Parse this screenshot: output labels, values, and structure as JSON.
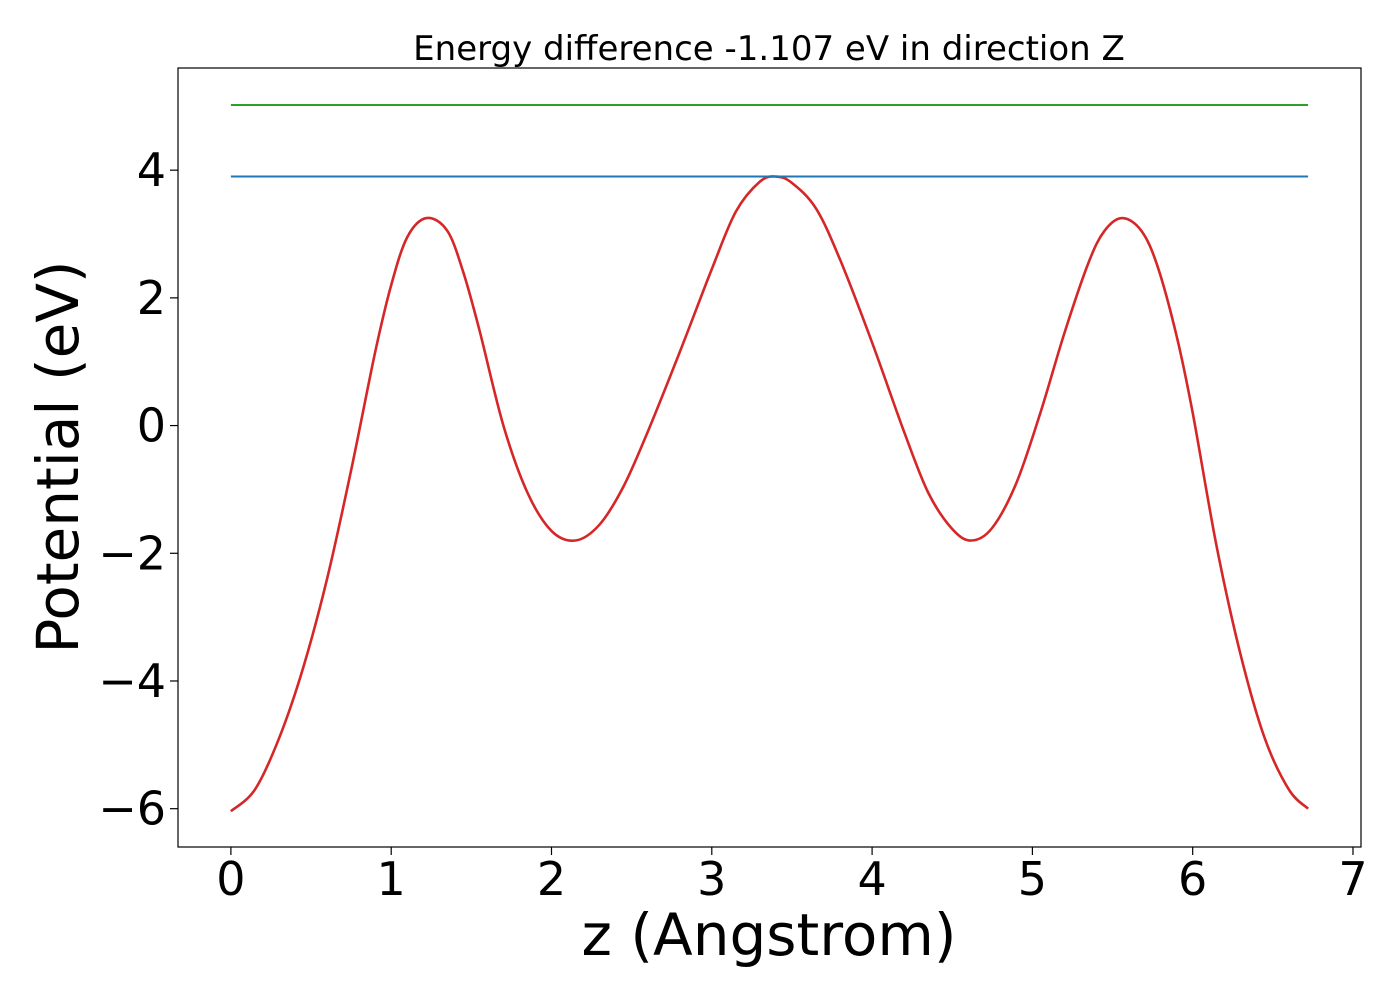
{
  "chart_data": {
    "type": "line",
    "title": "Energy difference -1.107 eV in direction Z",
    "xlabel": "z (Angstrom)",
    "ylabel": "Potential (eV)",
    "xlim": [
      -0.33,
      7.05
    ],
    "ylim": [
      -6.6,
      5.6
    ],
    "xticks": [
      "0",
      "1",
      "2",
      "3",
      "4",
      "5",
      "6",
      "7"
    ],
    "yticks": [
      "−6",
      "−4",
      "−2",
      "0",
      "2",
      "4"
    ],
    "grid": false,
    "legend": "none",
    "series": [
      {
        "color": "#d62728",
        "style": "curve",
        "points": [
          [
            0.0,
            -6.04
          ],
          [
            0.15,
            -5.7
          ],
          [
            0.3,
            -4.9
          ],
          [
            0.45,
            -3.8
          ],
          [
            0.6,
            -2.4
          ],
          [
            0.75,
            -0.7
          ],
          [
            0.9,
            1.15
          ],
          [
            1.0,
            2.2
          ],
          [
            1.1,
            2.95
          ],
          [
            1.22,
            3.25
          ],
          [
            1.35,
            3.05
          ],
          [
            1.45,
            2.4
          ],
          [
            1.55,
            1.5
          ],
          [
            1.7,
            0.0
          ],
          [
            1.85,
            -1.05
          ],
          [
            2.0,
            -1.65
          ],
          [
            2.15,
            -1.8
          ],
          [
            2.3,
            -1.55
          ],
          [
            2.45,
            -0.95
          ],
          [
            2.6,
            -0.1
          ],
          [
            2.8,
            1.15
          ],
          [
            3.0,
            2.45
          ],
          [
            3.15,
            3.35
          ],
          [
            3.3,
            3.82
          ],
          [
            3.4,
            3.9
          ],
          [
            3.5,
            3.8
          ],
          [
            3.65,
            3.4
          ],
          [
            3.8,
            2.6
          ],
          [
            4.0,
            1.3
          ],
          [
            4.2,
            -0.1
          ],
          [
            4.35,
            -1.05
          ],
          [
            4.5,
            -1.62
          ],
          [
            4.62,
            -1.8
          ],
          [
            4.75,
            -1.6
          ],
          [
            4.9,
            -0.9
          ],
          [
            5.05,
            0.2
          ],
          [
            5.2,
            1.45
          ],
          [
            5.35,
            2.55
          ],
          [
            5.45,
            3.05
          ],
          [
            5.56,
            3.25
          ],
          [
            5.68,
            3.05
          ],
          [
            5.78,
            2.5
          ],
          [
            5.9,
            1.4
          ],
          [
            6.0,
            0.2
          ],
          [
            6.15,
            -1.9
          ],
          [
            6.3,
            -3.6
          ],
          [
            6.45,
            -4.9
          ],
          [
            6.6,
            -5.7
          ],
          [
            6.72,
            -6.0
          ]
        ]
      },
      {
        "color": "#1f77b4",
        "style": "straight",
        "points": [
          [
            0.0,
            3.9
          ],
          [
            6.72,
            3.9
          ]
        ]
      },
      {
        "color": "#2ca02c",
        "style": "straight",
        "points": [
          [
            0.0,
            5.02
          ],
          [
            6.72,
            5.02
          ]
        ]
      }
    ]
  }
}
